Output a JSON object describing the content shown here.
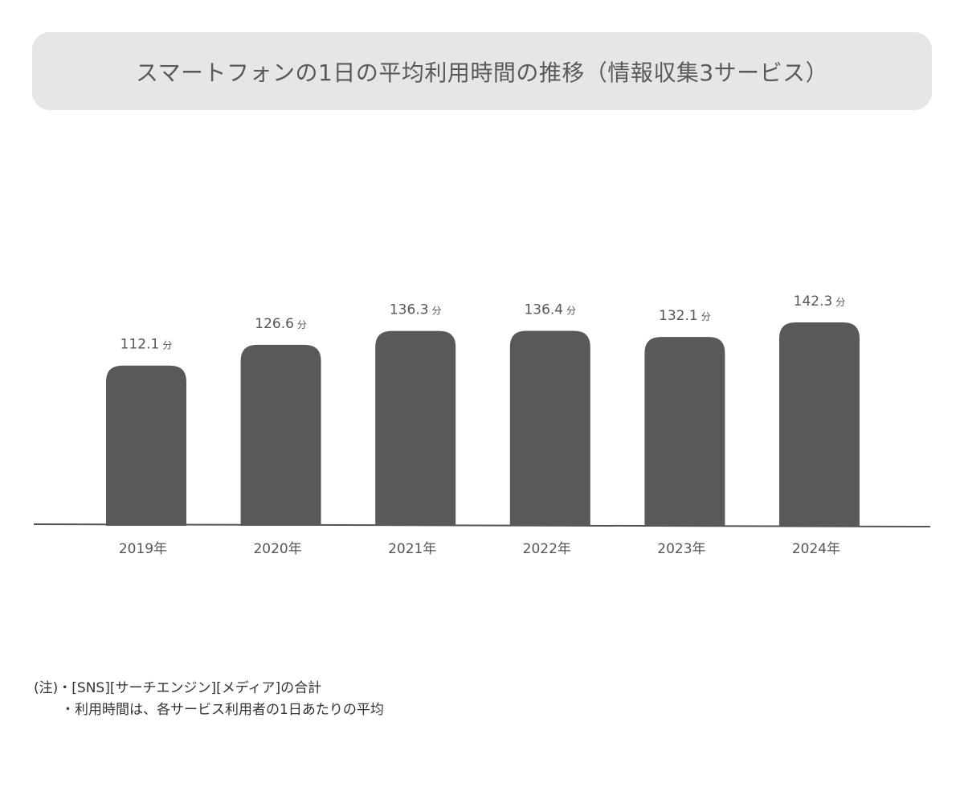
{
  "title": "スマートフォンの1日の平均利用時間の推移（情報収集3サービス）",
  "chart_data": {
    "type": "bar",
    "categories": [
      "2019年",
      "2020年",
      "2021年",
      "2022年",
      "2023年",
      "2024年"
    ],
    "values": [
      112.1,
      126.6,
      136.3,
      136.4,
      132.1,
      142.3
    ],
    "value_labels": [
      "112.1",
      "126.6",
      "136.3",
      "136.4",
      "132.1",
      "142.3"
    ],
    "unit": "分",
    "title": "スマートフォンの1日の平均利用時間の推移（情報収集3サービス）",
    "xlabel": "",
    "ylabel": "",
    "ylim": [
      0,
      142.3
    ],
    "grid": false,
    "legend": "none",
    "bar_color": "#5a5959"
  },
  "notes": {
    "line1": "(注)・[SNS][サーチエンジン][メディア]の合計",
    "line2": "・利用時間は、各サービス利用者の1日あたりの平均"
  },
  "colors": {
    "title_bg": "#e6e6e6",
    "bar": "#5a5959",
    "axis": "#555555"
  }
}
